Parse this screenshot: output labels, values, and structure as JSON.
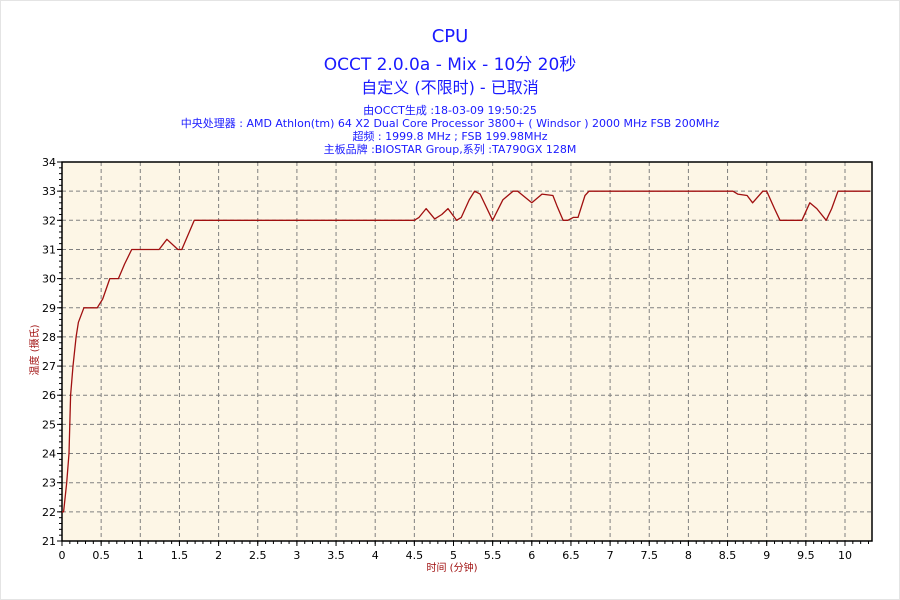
{
  "header": {
    "title": "CPU",
    "subtitle": "OCCT 2.0.0a - Mix - 10分 20秒",
    "mode": "自定义 (不限时) - 已取消",
    "generated": "由OCCT生成 :18-03-09 19:50:25",
    "cpu": "中央处理器 : AMD Athlon(tm) 64 X2 Dual Core Processor 3800+ ( Windsor ) 2000 MHz FSB 200MHz",
    "overclock": "超频 : 1999.8 MHz ; FSB 199.98MHz",
    "motherboard": "主板品牌 :BIOSTAR Group,系列 :TA790GX 128M"
  },
  "colors": {
    "line": "#a01010",
    "plot_bg": "#fdf6e6",
    "title": "#1a1aff",
    "grid": "#808080"
  },
  "chart_data": {
    "type": "line",
    "title": "CPU",
    "xlabel": "时间 (分钟)",
    "ylabel": "温度 (摄氏)",
    "xlim": [
      0,
      10.35
    ],
    "ylim": [
      21,
      34
    ],
    "grid": true,
    "x_ticks": [
      "0",
      "0.5",
      "1",
      "1.5",
      "2",
      "2.5",
      "3",
      "3.5",
      "4",
      "4.5",
      "5",
      "5.5",
      "6",
      "6.5",
      "7",
      "7.5",
      "8",
      "8.5",
      "9",
      "9.5",
      "10"
    ],
    "y_ticks": [
      "21",
      "22",
      "23",
      "24",
      "25",
      "26",
      "27",
      "28",
      "29",
      "30",
      "31",
      "32",
      "33",
      "34"
    ],
    "series": [
      {
        "name": "CPU",
        "x": [
          0,
          0.02,
          0.06,
          0.09,
          0.11,
          0.14,
          0.18,
          0.21,
          0.28,
          0.45,
          0.52,
          0.61,
          0.72,
          0.8,
          0.89,
          1.24,
          1.34,
          1.48,
          1.53,
          1.69,
          4.5,
          4.56,
          4.65,
          4.76,
          4.85,
          4.93,
          5.04,
          5.1,
          5.2,
          5.27,
          5.34,
          5.5,
          5.63,
          5.76,
          5.82,
          6.0,
          6.13,
          6.27,
          6.32,
          6.4,
          6.46,
          6.53,
          6.59,
          6.68,
          6.73,
          8.57,
          8.63,
          8.75,
          8.82,
          8.95,
          9.0,
          9.1,
          9.17,
          9.45,
          9.55,
          9.64,
          9.76,
          9.83,
          9.91,
          10.32
        ],
        "y": [
          22,
          22,
          23,
          24,
          26,
          27,
          28,
          28.5,
          29,
          29,
          29.3,
          30,
          30,
          30.5,
          31,
          31,
          31.35,
          31,
          31,
          32,
          32,
          32.1,
          32.4,
          32.05,
          32.2,
          32.4,
          32.0,
          32.1,
          32.7,
          33,
          32.9,
          32.0,
          32.7,
          33,
          33,
          32.6,
          32.9,
          32.85,
          32.5,
          32.0,
          32.0,
          32.1,
          32.1,
          32.85,
          33,
          33,
          32.9,
          32.85,
          32.6,
          33,
          33,
          32.4,
          32.0,
          32,
          32.6,
          32.4,
          32.0,
          32.4,
          33,
          33
        ]
      }
    ]
  }
}
